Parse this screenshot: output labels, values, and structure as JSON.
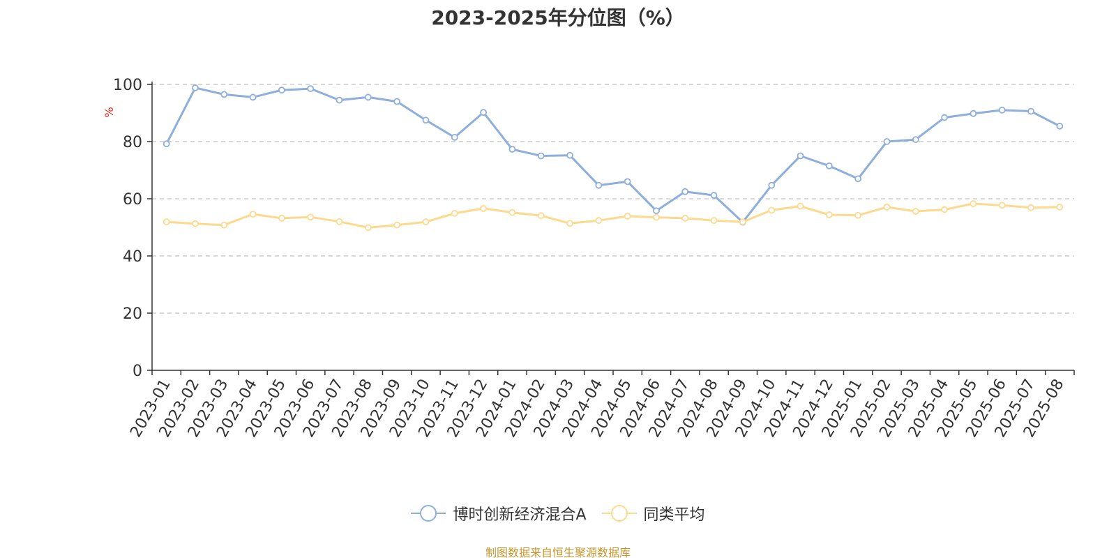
{
  "title": "2023-2025年分位图（%）",
  "source": "制图数据来自恒生聚源数据库",
  "colors": {
    "series1": "#8eaedb",
    "series2": "#fdd98e",
    "ylabel": "#e8241d",
    "source": "#c9962c",
    "axis": "#333333",
    "grid": "#cccccc"
  },
  "chart_data": {
    "type": "line",
    "title": "2023-2025年分位图（%）",
    "ylabel": "%",
    "xlabel": "",
    "ylim": [
      0,
      100
    ],
    "yticks": [
      0,
      20,
      40,
      60,
      80,
      100
    ],
    "grid": true,
    "legend_position": "bottom-center",
    "categories": [
      "2023-01",
      "2023-02",
      "2023-03",
      "2023-04",
      "2023-05",
      "2023-06",
      "2023-07",
      "2023-08",
      "2023-09",
      "2023-10",
      "2023-11",
      "2023-12",
      "2024-01",
      "2024-02",
      "2024-03",
      "2024-04",
      "2024-05",
      "2024-06",
      "2024-07",
      "2024-08",
      "2024-09",
      "2024-10",
      "2024-11",
      "2024-12",
      "2025-01",
      "2025-02",
      "2025-03",
      "2025-04",
      "2025-05",
      "2025-06",
      "2025-07",
      "2025-08"
    ],
    "series": [
      {
        "name": "博时创新经济混合A",
        "color": "#8eaedb",
        "values": [
          79.2,
          98.8,
          96.5,
          95.5,
          98.0,
          98.5,
          94.5,
          95.5,
          94.0,
          87.5,
          81.5,
          90.2,
          77.3,
          75.0,
          75.2,
          64.7,
          66.0,
          55.8,
          62.5,
          61.2,
          51.8,
          64.7,
          75.0,
          71.5,
          67.0,
          80.0,
          80.7,
          88.4,
          89.8,
          91.0,
          90.6,
          85.4
        ]
      },
      {
        "name": "同类平均",
        "color": "#fdd98e",
        "values": [
          51.9,
          51.3,
          50.8,
          54.6,
          53.2,
          53.6,
          52.0,
          49.9,
          50.8,
          51.9,
          54.9,
          56.6,
          55.2,
          54.1,
          51.4,
          52.4,
          53.9,
          53.5,
          53.2,
          52.4,
          51.9,
          56.0,
          57.4,
          54.4,
          54.2,
          57.1,
          55.6,
          56.2,
          58.3,
          57.7,
          56.9,
          57.1
        ]
      }
    ]
  }
}
